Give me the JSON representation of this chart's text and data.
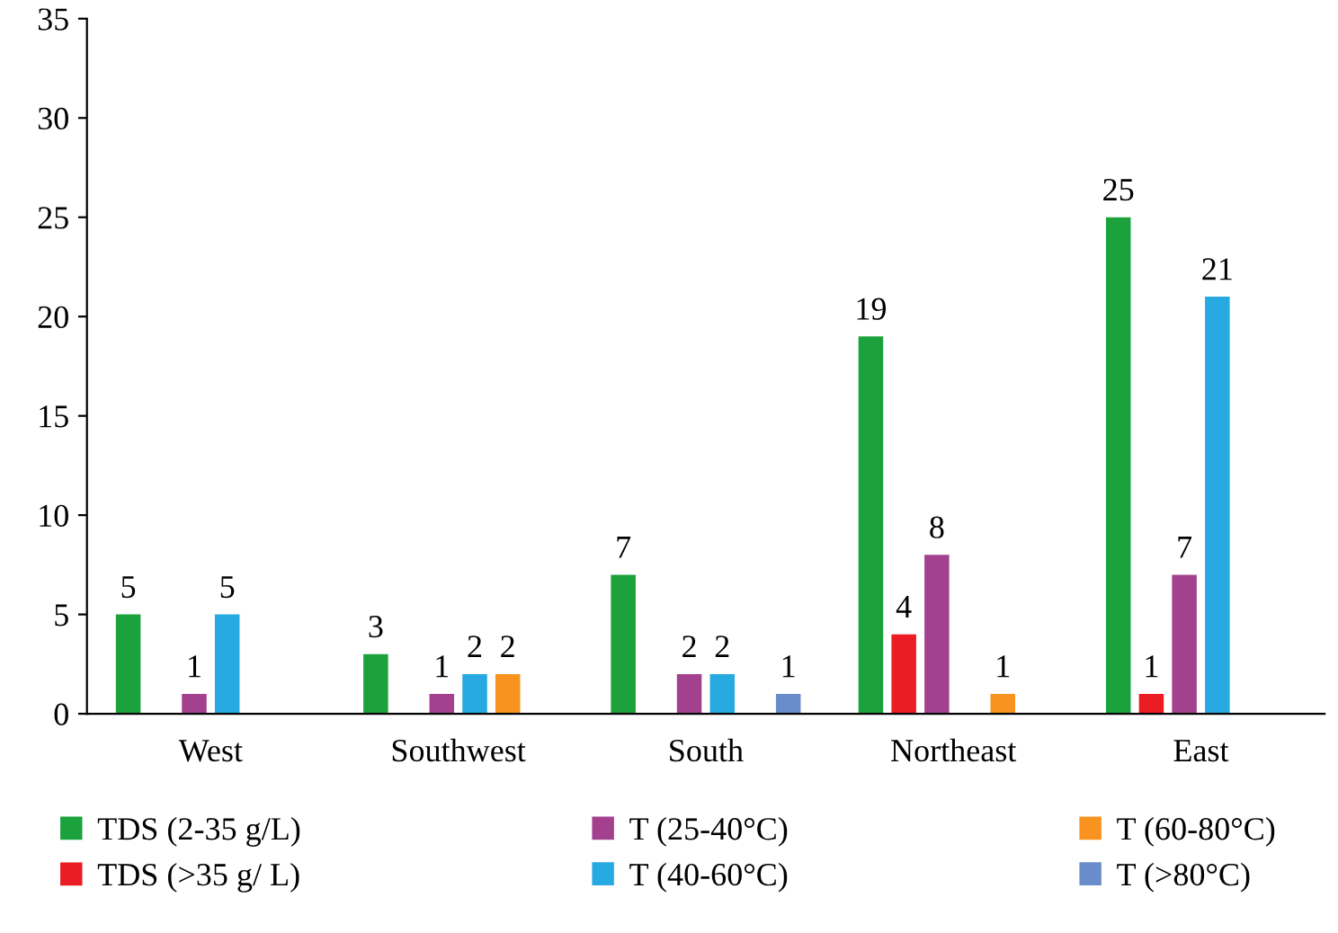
{
  "chart_data": {
    "type": "bar",
    "categories": [
      "West",
      "Southwest",
      "South",
      "Northeast",
      "East"
    ],
    "series": [
      {
        "name": "TDS (2-35 g/L)",
        "color": "#1ba23c",
        "values": [
          5,
          3,
          7,
          19,
          25
        ]
      },
      {
        "name": "TDS (>35 g/ L)",
        "color": "#ec1c24",
        "values": [
          null,
          null,
          null,
          4,
          1
        ]
      },
      {
        "name": "T (25-40°C)",
        "color": "#a3418f",
        "values": [
          1,
          1,
          2,
          8,
          7
        ]
      },
      {
        "name": "T (40-60°C)",
        "color": "#27aae1",
        "values": [
          5,
          2,
          2,
          null,
          21
        ]
      },
      {
        "name": "T (60-80°C)",
        "color": "#f7931e",
        "values": [
          null,
          2,
          null,
          1,
          null
        ]
      },
      {
        "name": "T (>80°C)",
        "color": "#6b8ccb",
        "values": [
          null,
          null,
          1,
          null,
          null
        ]
      }
    ],
    "ylim": [
      0,
      35
    ],
    "yticks": [
      0,
      5,
      10,
      15,
      20,
      25,
      30,
      35
    ],
    "data_labels": true,
    "grid": false,
    "legend": "bottom"
  }
}
